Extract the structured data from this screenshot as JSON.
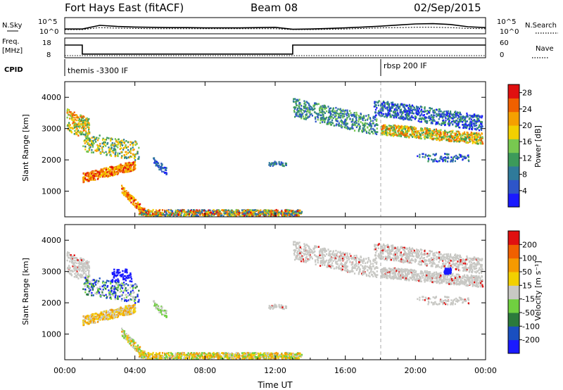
{
  "header": {
    "station": "Fort Hays East (fitACF)",
    "beam": "Beam 08",
    "date": "02/Sep/2015"
  },
  "chart_data": [
    {
      "type": "line",
      "panel": "noise",
      "series": [
        {
          "name": "N.Sky",
          "values": [
            1.2,
            1.2,
            2.5,
            2.1,
            1.9,
            1.8,
            1.7,
            1.7,
            1.6,
            1.6,
            1.6,
            1.7,
            1.8,
            1.1,
            1.2,
            1.4,
            1.6,
            1.9,
            2.2,
            2.6,
            3.0,
            3.1,
            2.8,
            2.0,
            1.7
          ]
        },
        {
          "name": "N.Search",
          "values": [
            1.0,
            1.0,
            1.7,
            1.5,
            1.4,
            1.3,
            1.3,
            1.3,
            1.3,
            1.3,
            1.3,
            1.3,
            1.3,
            1.0,
            1.0,
            1.1,
            1.2,
            1.4,
            1.6,
            1.7,
            1.8,
            1.8,
            1.7,
            1.4,
            1.3
          ]
        }
      ],
      "left_labels": [
        "N.Sky",
        "10^5",
        "10^0"
      ],
      "right_labels": [
        "10^5",
        "10^0",
        "N.Search"
      ]
    },
    {
      "type": "line",
      "panel": "frequency",
      "series": [
        {
          "name": "Freq.",
          "segments": [
            [
              0,
              1,
              18
            ],
            [
              1,
              13,
              10.5
            ],
            [
              13,
              24,
              18
            ]
          ]
        },
        {
          "name": "Nave",
          "values": [
            7,
            7
          ]
        }
      ],
      "left_labels": [
        "Freq.",
        "[MHz]",
        "18",
        "8"
      ],
      "right_labels": [
        "60",
        "0",
        "Nave"
      ]
    },
    {
      "type": "text",
      "panel": "cpid",
      "label": "CPID",
      "entries": [
        {
          "time": 0,
          "text": "themis -3300 IF"
        },
        {
          "time": 18,
          "text": "rbsp 200 IF"
        }
      ]
    },
    {
      "type": "heatmap",
      "panel": "power",
      "x": [
        0,
        24
      ],
      "xticks": [
        "00:00",
        "04:00",
        "08:00",
        "12:00",
        "16:00",
        "20:00",
        "00:00"
      ],
      "ylabel": "Slant Range [km]",
      "yticks": [
        1000,
        2000,
        3000,
        4000
      ],
      "ylim": [
        180,
        4500
      ],
      "colorbar": {
        "label": "Power [dB]",
        "ticks": [
          4,
          8,
          12,
          16,
          20,
          24,
          28
        ],
        "range": [
          0,
          30
        ],
        "colors": [
          "#1a1aff",
          "#2e55c8",
          "#2f7a9a",
          "#3c9a5a",
          "#78c850",
          "#f2d000",
          "#f5a000",
          "#f06000",
          "#e01010"
        ]
      }
    },
    {
      "type": "heatmap",
      "panel": "velocity",
      "x": [
        0,
        24
      ],
      "xticks": [
        "00:00",
        "04:00",
        "08:00",
        "12:00",
        "16:00",
        "20:00",
        "00:00"
      ],
      "xlabel": "Time UT",
      "ylabel": "Slant Range [km]",
      "yticks": [
        1000,
        2000,
        3000,
        4000
      ],
      "ylim": [
        180,
        4500
      ],
      "colorbar": {
        "label": "Velocity [m s⁻¹]",
        "ticks": [
          "200",
          "100",
          "50",
          "15",
          "-15",
          "-50",
          "-100",
          "-200"
        ],
        "colors": [
          "#1a1aff",
          "#1a4fc0",
          "#2b7a3c",
          "#70d040",
          "#c8c8c4",
          "#f2d000",
          "#f59a00",
          "#f06000",
          "#e01010"
        ]
      }
    }
  ]
}
